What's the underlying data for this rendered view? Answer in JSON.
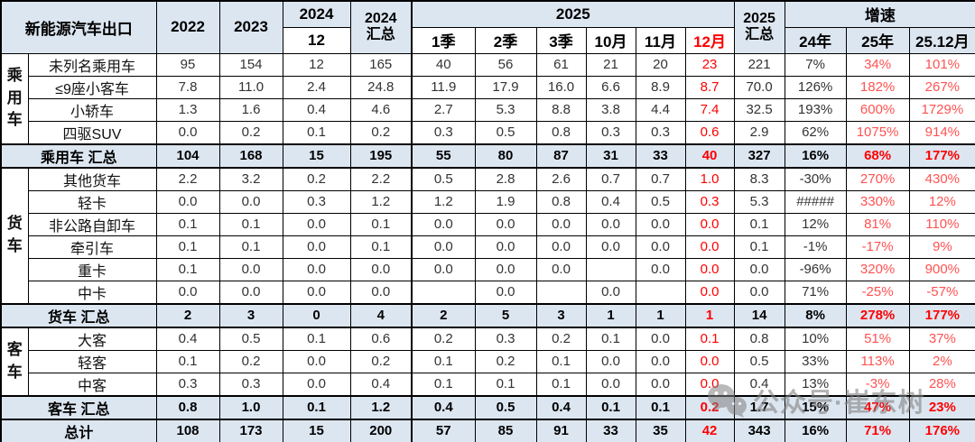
{
  "colors": {
    "header_bg": "#dce6f1",
    "summary_bg": "#dce6f1",
    "highlight_red": "#ff0000",
    "growth_red": "#ff5252",
    "border": "#000000",
    "watermark_gray": "#828282"
  },
  "watermark": {
    "text": "公众号·崔东树",
    "icon": "wechat-icon"
  },
  "table": {
    "corner_label": "新能源汽车出口",
    "header": {
      "y2022": "2022",
      "y2023": "2023",
      "y2024": "2024",
      "m12": "12",
      "y2024_total": "2024\n汇总",
      "y2025": "2025",
      "months": [
        "1季",
        "2季",
        "3季",
        "10月",
        "11月",
        "12月"
      ],
      "y2025_total": "2025\n汇总",
      "growth": "增速",
      "growth_cols": [
        "24年",
        "25年",
        "25.12月"
      ]
    },
    "rows": [
      {
        "kind": "data",
        "group": {
          "label": "乘用车",
          "span": 4
        },
        "label": "未列名乘用车",
        "values": [
          "95",
          "154",
          "12",
          "165",
          "40",
          "56",
          "61",
          "21",
          "20",
          "23",
          "221",
          "7%",
          "34%",
          "101%"
        ]
      },
      {
        "kind": "data",
        "label": "≤9座小客车",
        "values": [
          "7.8",
          "11.0",
          "2.4",
          "24.8",
          "11.9",
          "17.9",
          "16.0",
          "6.6",
          "8.9",
          "8.7",
          "70.0",
          "126%",
          "182%",
          "267%"
        ]
      },
      {
        "kind": "data",
        "label": "小轿车",
        "values": [
          "1.3",
          "1.6",
          "0.4",
          "4.6",
          "2.7",
          "5.3",
          "8.8",
          "3.8",
          "4.4",
          "7.4",
          "32.5",
          "193%",
          "600%",
          "1729%"
        ]
      },
      {
        "kind": "data",
        "label": "四驱SUV",
        "values": [
          "0.0",
          "0.2",
          "0.1",
          "0.2",
          "0.3",
          "0.5",
          "0.8",
          "0.3",
          "0.3",
          "0.6",
          "2.9",
          "62%",
          "1075%",
          "914%"
        ]
      },
      {
        "kind": "summary",
        "label": "乘用车 汇总",
        "values": [
          "104",
          "168",
          "15",
          "195",
          "55",
          "80",
          "87",
          "31",
          "33",
          "40",
          "327",
          "16%",
          "68%",
          "177%"
        ]
      },
      {
        "kind": "data",
        "group": {
          "label": "货车",
          "span": 6
        },
        "label": "其他货车",
        "values": [
          "2.2",
          "3.2",
          "0.2",
          "2.2",
          "0.5",
          "2.8",
          "2.6",
          "0.7",
          "0.7",
          "1.0",
          "8.3",
          "-30%",
          "270%",
          "430%"
        ]
      },
      {
        "kind": "data",
        "label": "轻卡",
        "values": [
          "0.0",
          "0.0",
          "0.3",
          "1.2",
          "1.2",
          "1.9",
          "0.8",
          "0.4",
          "0.5",
          "0.3",
          "5.3",
          "#####",
          "330%",
          "12%"
        ]
      },
      {
        "kind": "data",
        "label": "非公路自卸车",
        "values": [
          "0.1",
          "0.1",
          "0.0",
          "0.1",
          "0.0",
          "0.0",
          "0.0",
          "0.0",
          "0.0",
          "0.0",
          "0.1",
          "12%",
          "81%",
          "110%"
        ]
      },
      {
        "kind": "data",
        "label": "牵引车",
        "values": [
          "0.1",
          "0.1",
          "0.0",
          "0.1",
          "0.0",
          "0.0",
          "0.0",
          "0.0",
          "0.0",
          "0.0",
          "0.1",
          "-1%",
          "-17%",
          "9%"
        ]
      },
      {
        "kind": "data",
        "label": "重卡",
        "values": [
          "0.1",
          "0.0",
          "0.0",
          "0.0",
          "0.0",
          "0.0",
          "0.0",
          "",
          "0.0",
          "0.0",
          "0.0",
          "-96%",
          "320%",
          "900%"
        ]
      },
      {
        "kind": "data",
        "label": "中卡",
        "values": [
          "0.0",
          "0.0",
          "0.0",
          "0.0",
          "",
          "0.0",
          "",
          "0.0",
          "",
          "0.0",
          "0.0",
          "71%",
          "-25%",
          "-57%"
        ]
      },
      {
        "kind": "summary",
        "label": "货车 汇总",
        "values": [
          "2",
          "3",
          "0",
          "4",
          "2",
          "5",
          "3",
          "1",
          "1",
          "1",
          "14",
          "8%",
          "278%",
          "177%"
        ]
      },
      {
        "kind": "data",
        "group": {
          "label": "客车",
          "span": 3
        },
        "label": "大客",
        "values": [
          "0.4",
          "0.5",
          "0.1",
          "0.6",
          "0.2",
          "0.3",
          "0.2",
          "0.1",
          "0.0",
          "0.1",
          "0.8",
          "10%",
          "51%",
          "37%"
        ]
      },
      {
        "kind": "data",
        "label": "轻客",
        "values": [
          "0.1",
          "0.2",
          "0.0",
          "0.2",
          "0.1",
          "0.2",
          "0.1",
          "0.0",
          "0.0",
          "0.0",
          "0.5",
          "33%",
          "113%",
          "2%"
        ]
      },
      {
        "kind": "data",
        "label": "中客",
        "values": [
          "0.3",
          "0.3",
          "0.0",
          "0.4",
          "0.1",
          "0.1",
          "0.1",
          "0.0",
          "0.0",
          "0.0",
          "0.4",
          "13%",
          "-3%",
          "28%"
        ]
      },
      {
        "kind": "summary",
        "label": "客车 汇总",
        "values": [
          "0.8",
          "1.0",
          "0.1",
          "1.2",
          "0.4",
          "0.5",
          "0.4",
          "0.1",
          "0.1",
          "0.2",
          "1.7",
          "15%",
          "47%",
          "23%"
        ]
      },
      {
        "kind": "summary",
        "label": "总计",
        "values": [
          "108",
          "173",
          "15",
          "200",
          "57",
          "85",
          "91",
          "33",
          "35",
          "42",
          "343",
          "16%",
          "71%",
          "176%"
        ]
      }
    ]
  }
}
